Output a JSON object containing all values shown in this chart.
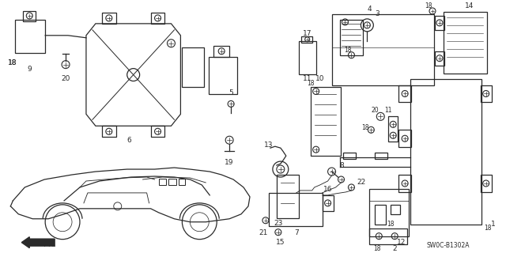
{
  "background_color": "#ffffff",
  "diagram_color": "#2a2a2a",
  "watermark": "SW0C-B1302A",
  "figsize": [
    6.4,
    3.2
  ],
  "dpi": 100
}
